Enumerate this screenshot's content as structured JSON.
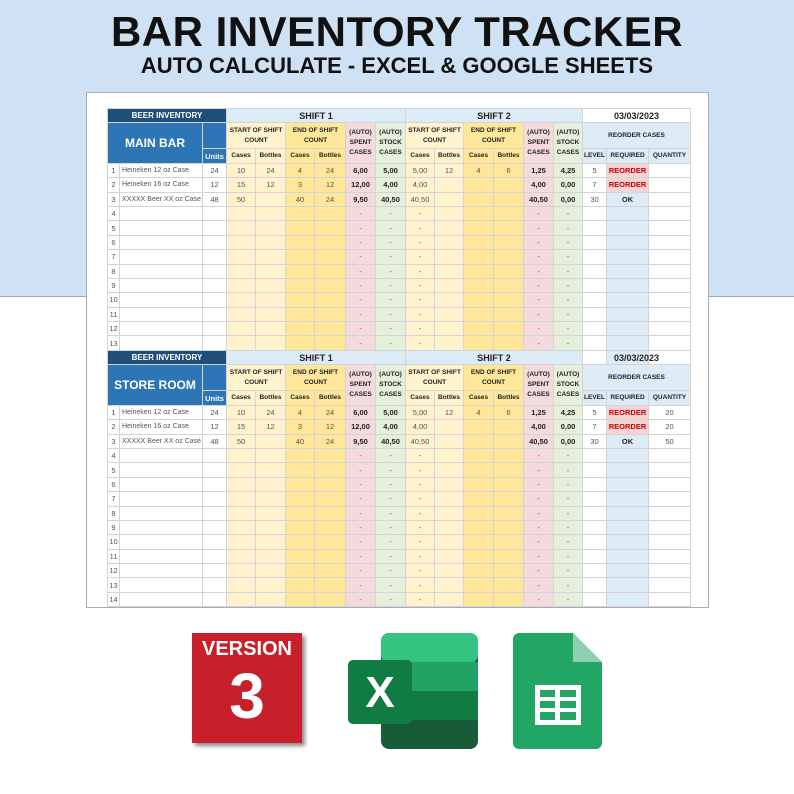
{
  "header": {
    "title": "BAR INVENTORY TRACKER",
    "subtitle": "AUTO CALCULATE - EXCEL & GOOGLE SHEETS"
  },
  "columns": {
    "inventory": "BEER INVENTORY",
    "shift1": "SHIFT 1",
    "shift2": "SHIFT 2",
    "start": "START OF SHIFT COUNT",
    "end": "END OF SHIFT COUNT",
    "spent": "(AUTO) SPENT CASES",
    "stock": "(AUTO) STOCK CASES",
    "reorder": "REORDER CASES",
    "units": "Units",
    "cases": "Cases",
    "bottles": "Bottles",
    "level": "LEVEL",
    "required": "REQUIRED",
    "quantity": "QUANTITY"
  },
  "tables": [
    {
      "location": "MAIN BAR",
      "date": "03/03/2023",
      "rows": [
        [
          "1",
          "Heineken 12 oz Case",
          "24",
          "10",
          "24",
          "4",
          "24",
          "6,00",
          "5,00",
          "5,00",
          "12",
          "4",
          "6",
          "1,25",
          "4,25",
          "5",
          "REORDER",
          ""
        ],
        [
          "2",
          "Heineken 16 oz Case",
          "12",
          "15",
          "12",
          "3",
          "12",
          "12,00",
          "4,00",
          "4,00",
          "",
          "",
          "",
          "4,00",
          "0,00",
          "7",
          "REORDER",
          ""
        ],
        [
          "3",
          "XXXXX Beer XX oz Case",
          "48",
          "50",
          "",
          "40",
          "24",
          "9,50",
          "40,50",
          "40,50",
          "",
          "",
          "",
          "40,50",
          "0,00",
          "30",
          "OK",
          ""
        ]
      ]
    },
    {
      "location": "STORE ROOM",
      "date": "03/03/2023",
      "rows": [
        [
          "1",
          "Heineken 12 oz Case",
          "24",
          "10",
          "24",
          "4",
          "24",
          "6,00",
          "5,00",
          "5,00",
          "12",
          "4",
          "6",
          "1,25",
          "4,25",
          "5",
          "REORDER",
          "20"
        ],
        [
          "2",
          "Heineken 16 oz Case",
          "12",
          "15",
          "12",
          "3",
          "12",
          "12,00",
          "4,00",
          "4,00",
          "",
          "",
          "",
          "4,00",
          "0,00",
          "7",
          "REORDER",
          "20"
        ],
        [
          "3",
          "XXXXX Beer XX oz Case",
          "48",
          "50",
          "",
          "40",
          "24",
          "9,50",
          "40,50",
          "40,50",
          "",
          "",
          "",
          "40,50",
          "0,00",
          "30",
          "OK",
          "50"
        ]
      ]
    }
  ],
  "empty_row_numbers": [
    "4",
    "5",
    "6",
    "7",
    "8",
    "9",
    "10",
    "11",
    "12",
    "13",
    "14"
  ],
  "dash": "-",
  "badges": {
    "version_label": "VERSION",
    "version_number": "3",
    "excel_letter": "X"
  },
  "colors": {
    "band": "#cfe1f4",
    "header_dark": "#1f4e79",
    "header_blue": "#2e75b6",
    "reorder": "#c00000",
    "excel": "#107c41",
    "sheets": "#23a566"
  }
}
